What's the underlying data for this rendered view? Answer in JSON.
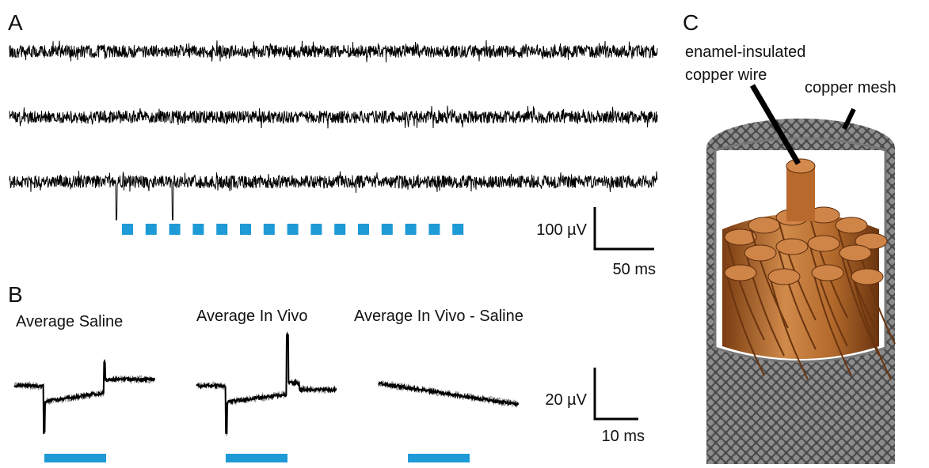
{
  "panels": [
    {
      "label": "A",
      "scale_bar": {
        "y": "100 µV",
        "x": "50 ms"
      }
    },
    {
      "label": "B",
      "titles": [
        "Average Saline",
        "Average In Vivo",
        "Average In Vivo - Saline"
      ],
      "scale_bar": {
        "y": "20 µV",
        "x": "10 ms"
      }
    },
    {
      "label": "C",
      "callouts": [
        "enamel-insulated",
        "copper wire",
        "copper mesh"
      ]
    }
  ]
}
